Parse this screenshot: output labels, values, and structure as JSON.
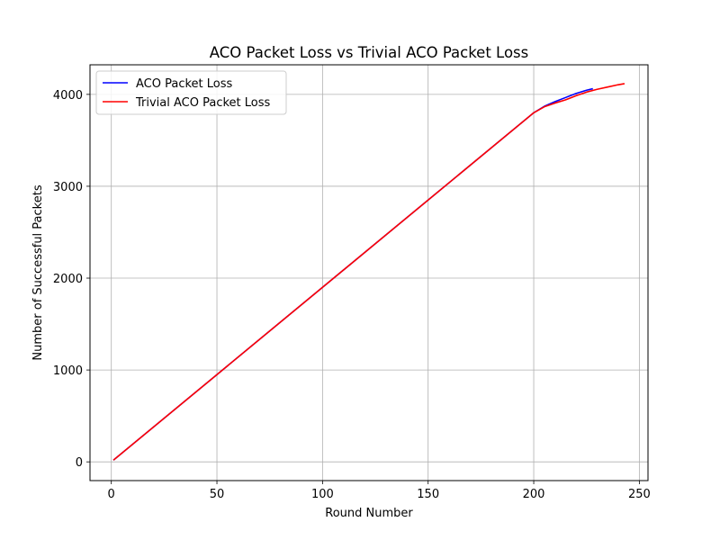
{
  "chart_data": {
    "type": "line",
    "title": "ACO Packet Loss vs Trivial ACO Packet Loss",
    "xlabel": "Round Number",
    "ylabel": "Number of Successful Packets",
    "xlim": [
      -10.1,
      254.1
    ],
    "ylim": [
      -204,
      4322
    ],
    "xticks": [
      0,
      50,
      100,
      150,
      200,
      250
    ],
    "yticks": [
      0,
      1000,
      2000,
      3000,
      4000
    ],
    "grid": true,
    "legend_position": "top-left",
    "series": [
      {
        "name": "ACO Packet Loss",
        "color": "#0000ff",
        "x": [
          1,
          50,
          100,
          150,
          200,
          205,
          210,
          215,
          220,
          225,
          228
        ],
        "y": [
          19,
          950,
          1900,
          2850,
          3800,
          3870,
          3920,
          3965,
          4010,
          4045,
          4062
        ]
      },
      {
        "name": "Trivial ACO Packet Loss",
        "color": "#ff0000",
        "x": [
          1,
          50,
          100,
          150,
          200,
          205,
          210,
          215,
          220,
          225,
          230,
          235,
          240,
          243
        ],
        "y": [
          19,
          950,
          1900,
          2850,
          3800,
          3865,
          3905,
          3940,
          3985,
          4025,
          4055,
          4080,
          4105,
          4117
        ]
      }
    ]
  },
  "colors": {
    "grid": "#b0b0b0",
    "axes": "#000000",
    "legend_border": "#cccccc"
  }
}
